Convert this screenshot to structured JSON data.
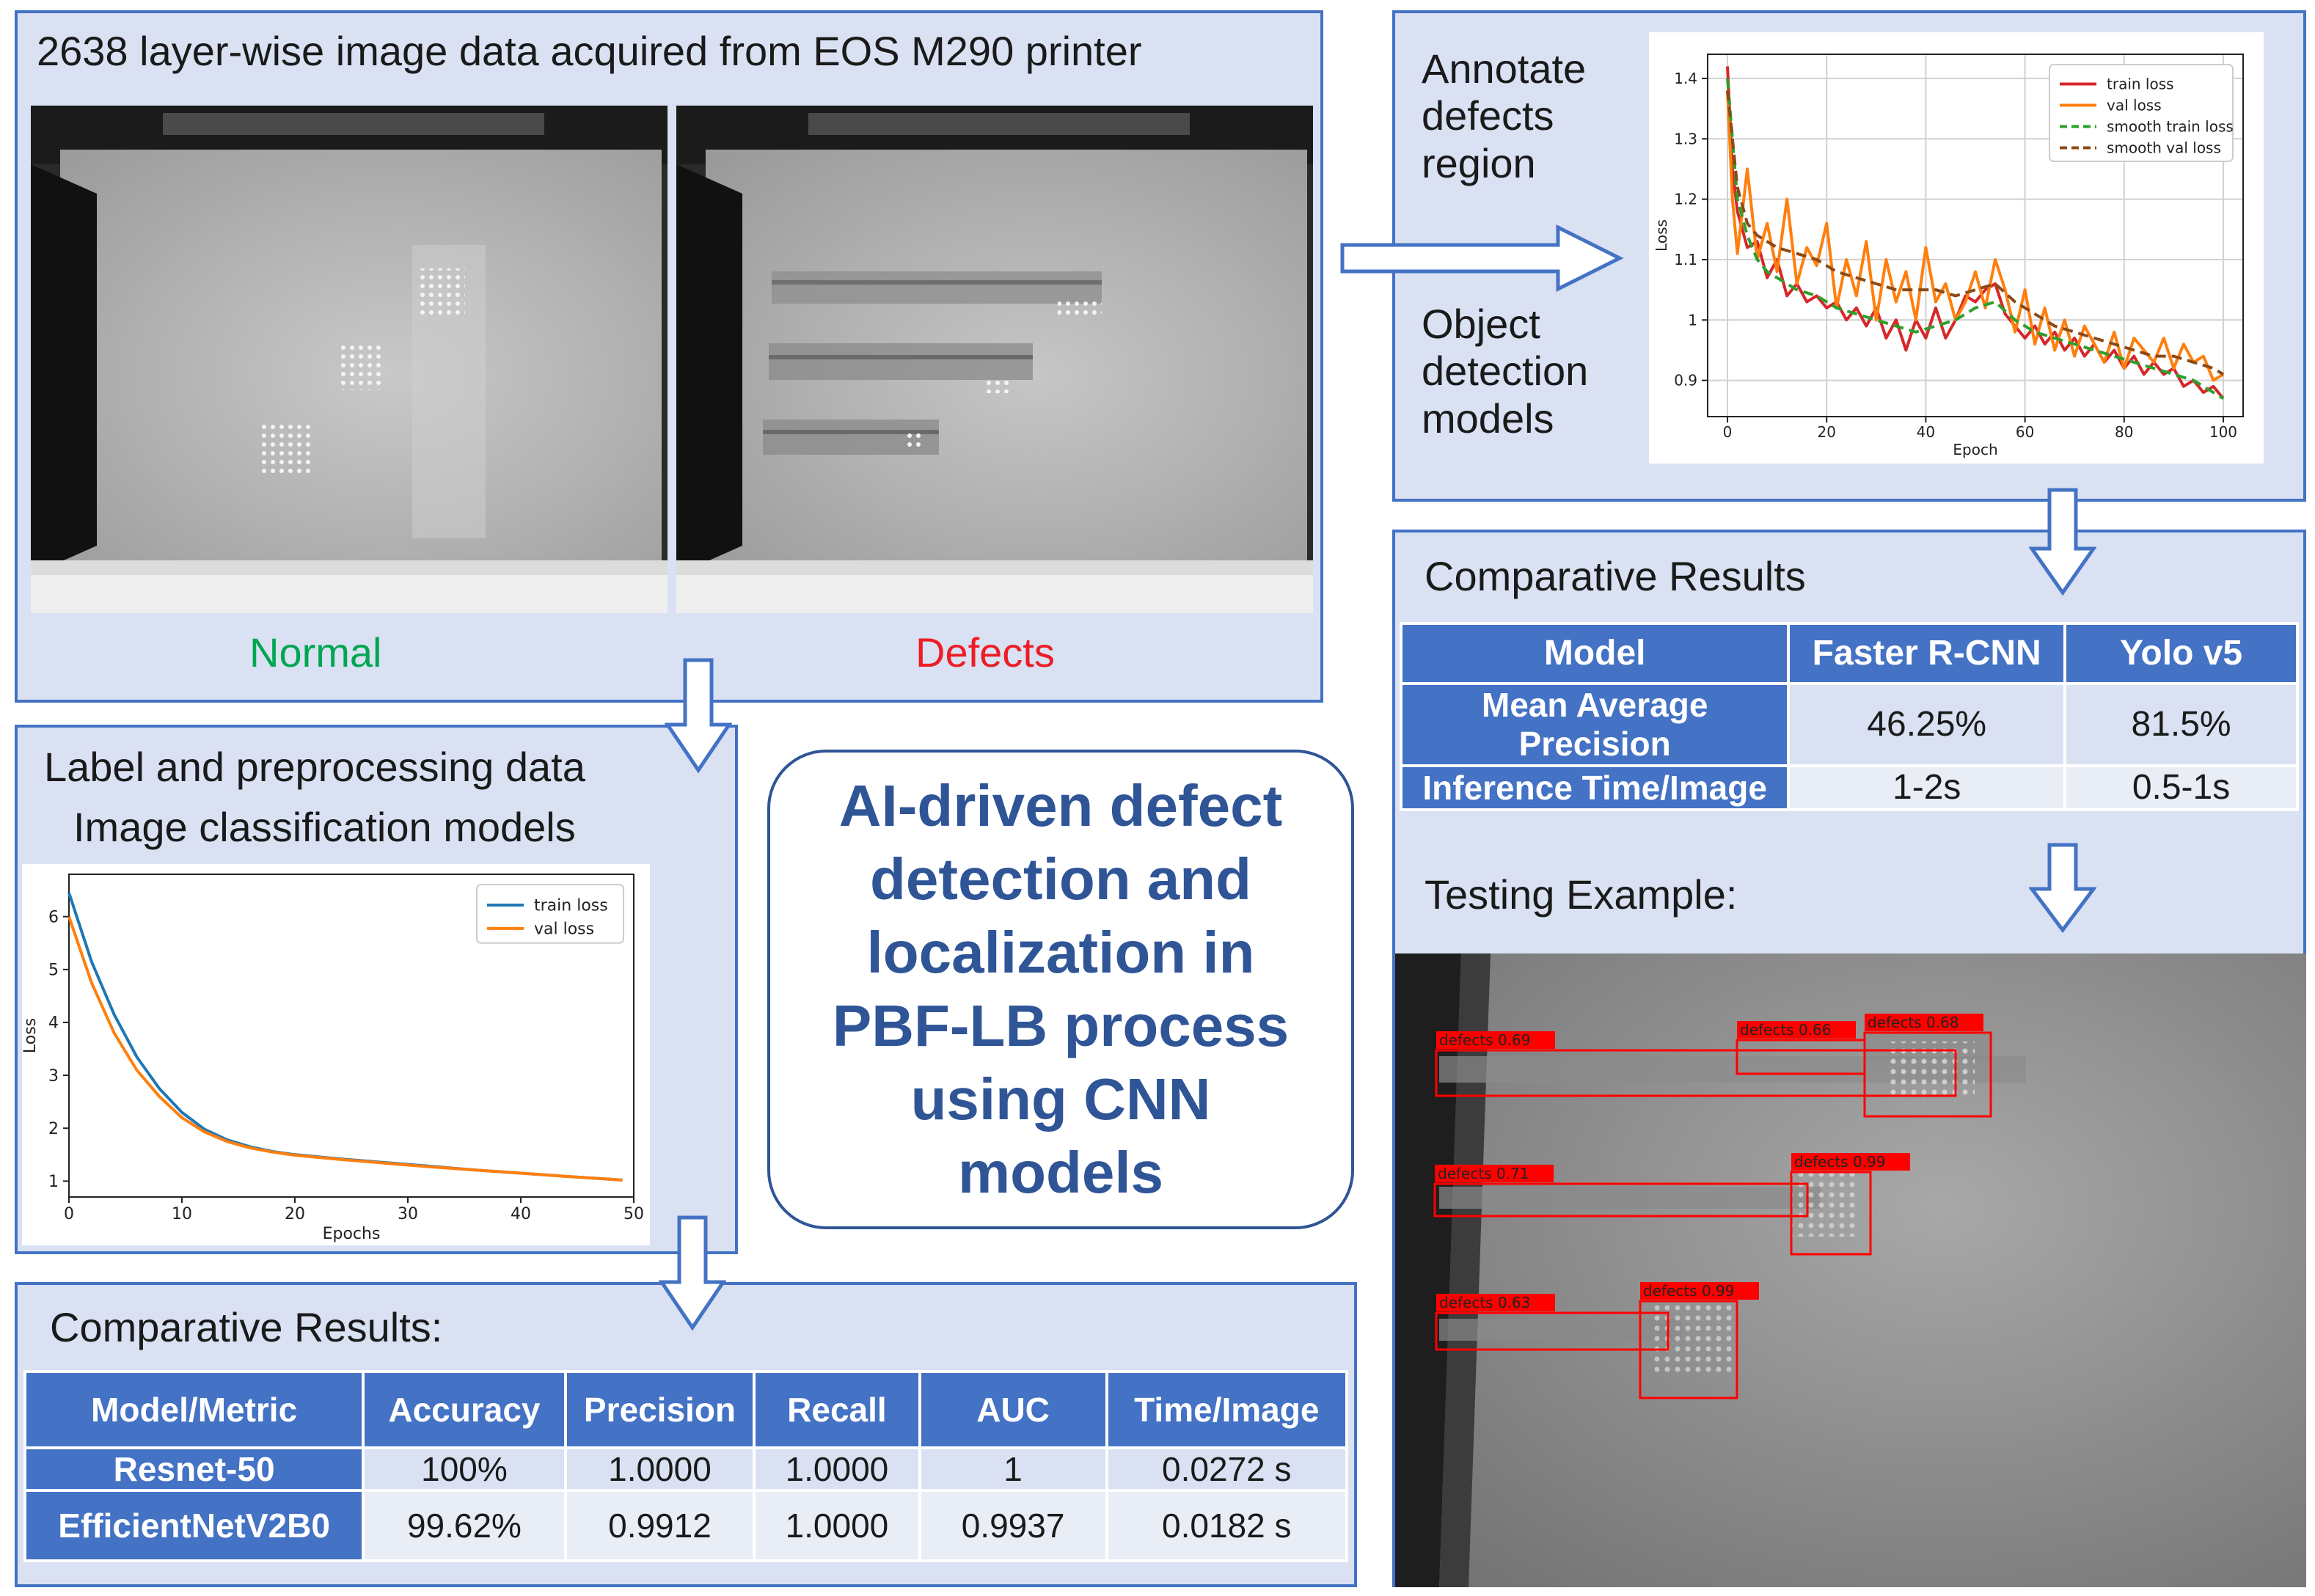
{
  "panels": {
    "data_acquisition": {
      "title": "2638 layer-wise image data acquired from EOS M290 printer",
      "normal_label": "Normal",
      "defects_label": "Defects",
      "normal_color": "#00a651",
      "defects_color": "#ee1c25"
    },
    "classification": {
      "line1": "Label and preprocessing data",
      "line2": "Image classification models"
    },
    "detection": {
      "annotate_text": "Annotate\ndefects\nregion",
      "object_text": "Object\ndetection\nmodels"
    },
    "center_title": "AI-driven defect\ndetection and\nlocalization in\nPBF-LB process\nusing CNN\nmodels",
    "comparative_classification": {
      "title": "Comparative Results:",
      "headers": [
        "Model/Metric",
        "Accuracy",
        "Precision",
        "Recall",
        "AUC",
        "Time/Image"
      ],
      "rows": [
        [
          "Resnet-50",
          "100%",
          "1.0000",
          "1.0000",
          "1",
          "0.0272 s"
        ],
        [
          "EfficientNetV2B0",
          "99.62%",
          "0.9912",
          "1.0000",
          "0.9937",
          "0.0182 s"
        ]
      ]
    },
    "comparative_detection": {
      "title": "Comparative Results",
      "headers": [
        "Model",
        "Faster R-CNN",
        "Yolo v5"
      ],
      "rows": [
        [
          "Mean Average\nPrecision",
          "46.25%",
          "81.5%"
        ],
        [
          "Inference Time/Image",
          "1-2s",
          "0.5-1s"
        ]
      ]
    },
    "testing": {
      "title": "Testing Example:",
      "detections": [
        {
          "label": "defects 0.69"
        },
        {
          "label": "defects 0.66"
        },
        {
          "label": "defects 0.68"
        },
        {
          "label": "defects 0.71"
        },
        {
          "label": "defects 0.99"
        },
        {
          "label": "defects 0.63"
        },
        {
          "label": "defects 0.99"
        }
      ]
    }
  },
  "chart_data": [
    {
      "type": "line",
      "id": "classification_loss",
      "xlabel": "Epochs",
      "ylabel": "Loss",
      "xlim": [
        0,
        50
      ],
      "ylim": [
        0.7,
        6.8
      ],
      "xticks": [
        0,
        10,
        20,
        30,
        40,
        50
      ],
      "yticks": [
        1,
        2,
        3,
        4,
        5,
        6
      ],
      "grid": false,
      "legend_position": "top-right",
      "series": [
        {
          "name": "train loss",
          "color": "#1f77b4",
          "x": [
            0,
            2,
            4,
            6,
            8,
            10,
            12,
            14,
            16,
            18,
            20,
            24,
            28,
            32,
            36,
            40,
            44,
            49
          ],
          "y": [
            6.45,
            5.15,
            4.15,
            3.35,
            2.75,
            2.3,
            1.98,
            1.78,
            1.65,
            1.56,
            1.5,
            1.42,
            1.35,
            1.28,
            1.21,
            1.15,
            1.09,
            1.02
          ]
        },
        {
          "name": "val loss",
          "color": "#ff7f0e",
          "x": [
            0,
            2,
            4,
            6,
            8,
            10,
            12,
            14,
            16,
            18,
            20,
            24,
            28,
            32,
            36,
            40,
            44,
            49
          ],
          "y": [
            6.0,
            4.75,
            3.8,
            3.1,
            2.6,
            2.2,
            1.93,
            1.75,
            1.63,
            1.55,
            1.49,
            1.41,
            1.34,
            1.27,
            1.21,
            1.15,
            1.09,
            1.02
          ]
        }
      ]
    },
    {
      "type": "line",
      "id": "detection_loss",
      "xlabel": "Epoch",
      "ylabel": "Loss",
      "xlim": [
        -4,
        104
      ],
      "ylim": [
        0.84,
        1.44
      ],
      "xticks": [
        0,
        20,
        40,
        60,
        80,
        100
      ],
      "yticks": [
        0.9,
        1.0,
        1.1,
        1.2,
        1.3,
        1.4
      ],
      "grid": true,
      "legend_position": "top-right",
      "series": [
        {
          "name": "train loss",
          "color": "#d62728",
          "dash": "",
          "x": [
            0,
            1,
            2,
            3,
            4,
            6,
            8,
            10,
            12,
            14,
            16,
            18,
            20,
            22,
            24,
            26,
            28,
            30,
            32,
            34,
            36,
            38,
            40,
            42,
            44,
            46,
            48,
            50,
            52,
            54,
            56,
            58,
            60,
            62,
            64,
            66,
            68,
            70,
            72,
            74,
            76,
            78,
            80,
            82,
            84,
            86,
            88,
            90,
            92,
            94,
            96,
            98,
            100
          ],
          "y": [
            1.42,
            1.25,
            1.18,
            1.15,
            1.12,
            1.13,
            1.07,
            1.1,
            1.04,
            1.06,
            1.03,
            1.04,
            1.02,
            1.03,
            1.0,
            1.02,
            0.99,
            1.02,
            0.97,
            1.0,
            0.95,
            1.0,
            0.97,
            1.02,
            0.97,
            1.0,
            1.04,
            1.03,
            1.05,
            1.06,
            1.01,
            0.99,
            0.97,
            0.99,
            0.96,
            0.98,
            0.95,
            0.97,
            0.94,
            0.96,
            0.93,
            0.95,
            0.92,
            0.94,
            0.91,
            0.93,
            0.91,
            0.92,
            0.89,
            0.9,
            0.88,
            0.89,
            0.87
          ]
        },
        {
          "name": "val loss",
          "color": "#ff7f0e",
          "dash": "",
          "x": [
            0,
            1,
            2,
            3,
            4,
            6,
            8,
            10,
            12,
            14,
            16,
            18,
            20,
            22,
            24,
            26,
            28,
            30,
            32,
            34,
            36,
            38,
            40,
            42,
            44,
            46,
            48,
            50,
            52,
            54,
            56,
            58,
            60,
            62,
            64,
            66,
            68,
            70,
            72,
            74,
            76,
            78,
            80,
            82,
            84,
            86,
            88,
            90,
            92,
            94,
            96,
            98,
            100
          ],
          "y": [
            1.38,
            1.2,
            1.11,
            1.18,
            1.25,
            1.1,
            1.16,
            1.08,
            1.2,
            1.06,
            1.12,
            1.09,
            1.16,
            1.02,
            1.1,
            1.04,
            1.13,
            1.0,
            1.1,
            1.03,
            1.08,
            1.0,
            1.12,
            1.03,
            1.06,
            1.0,
            1.03,
            1.08,
            1.02,
            1.1,
            1.05,
            0.98,
            1.05,
            0.96,
            1.02,
            0.95,
            1.0,
            0.94,
            0.99,
            0.96,
            0.93,
            0.98,
            0.92,
            0.97,
            0.95,
            0.93,
            0.97,
            0.92,
            0.96,
            0.93,
            0.94,
            0.9,
            0.91
          ]
        },
        {
          "name": "smooth train loss",
          "color": "#2ca02c",
          "dash": "14,8",
          "x": [
            0,
            2,
            4,
            6,
            8,
            10,
            14,
            18,
            22,
            26,
            30,
            34,
            38,
            42,
            46,
            50,
            54,
            58,
            62,
            66,
            70,
            74,
            78,
            82,
            86,
            90,
            94,
            98,
            100
          ],
          "y": [
            1.4,
            1.2,
            1.14,
            1.1,
            1.08,
            1.07,
            1.05,
            1.04,
            1.02,
            1.01,
            1.0,
            0.99,
            0.98,
            0.99,
            1.0,
            1.02,
            1.03,
            1.0,
            0.98,
            0.97,
            0.96,
            0.95,
            0.94,
            0.93,
            0.92,
            0.91,
            0.9,
            0.88,
            0.87
          ]
        },
        {
          "name": "smooth val loss",
          "color": "#8c4a16",
          "dash": "14,8",
          "x": [
            0,
            2,
            4,
            6,
            8,
            10,
            14,
            18,
            22,
            26,
            30,
            34,
            38,
            42,
            46,
            50,
            54,
            58,
            62,
            66,
            70,
            74,
            78,
            82,
            86,
            90,
            94,
            98,
            100
          ],
          "y": [
            1.38,
            1.22,
            1.16,
            1.14,
            1.13,
            1.12,
            1.11,
            1.1,
            1.08,
            1.07,
            1.06,
            1.05,
            1.05,
            1.05,
            1.04,
            1.05,
            1.06,
            1.03,
            1.01,
            0.99,
            0.98,
            0.97,
            0.96,
            0.95,
            0.94,
            0.94,
            0.93,
            0.92,
            0.91
          ]
        }
      ]
    }
  ]
}
